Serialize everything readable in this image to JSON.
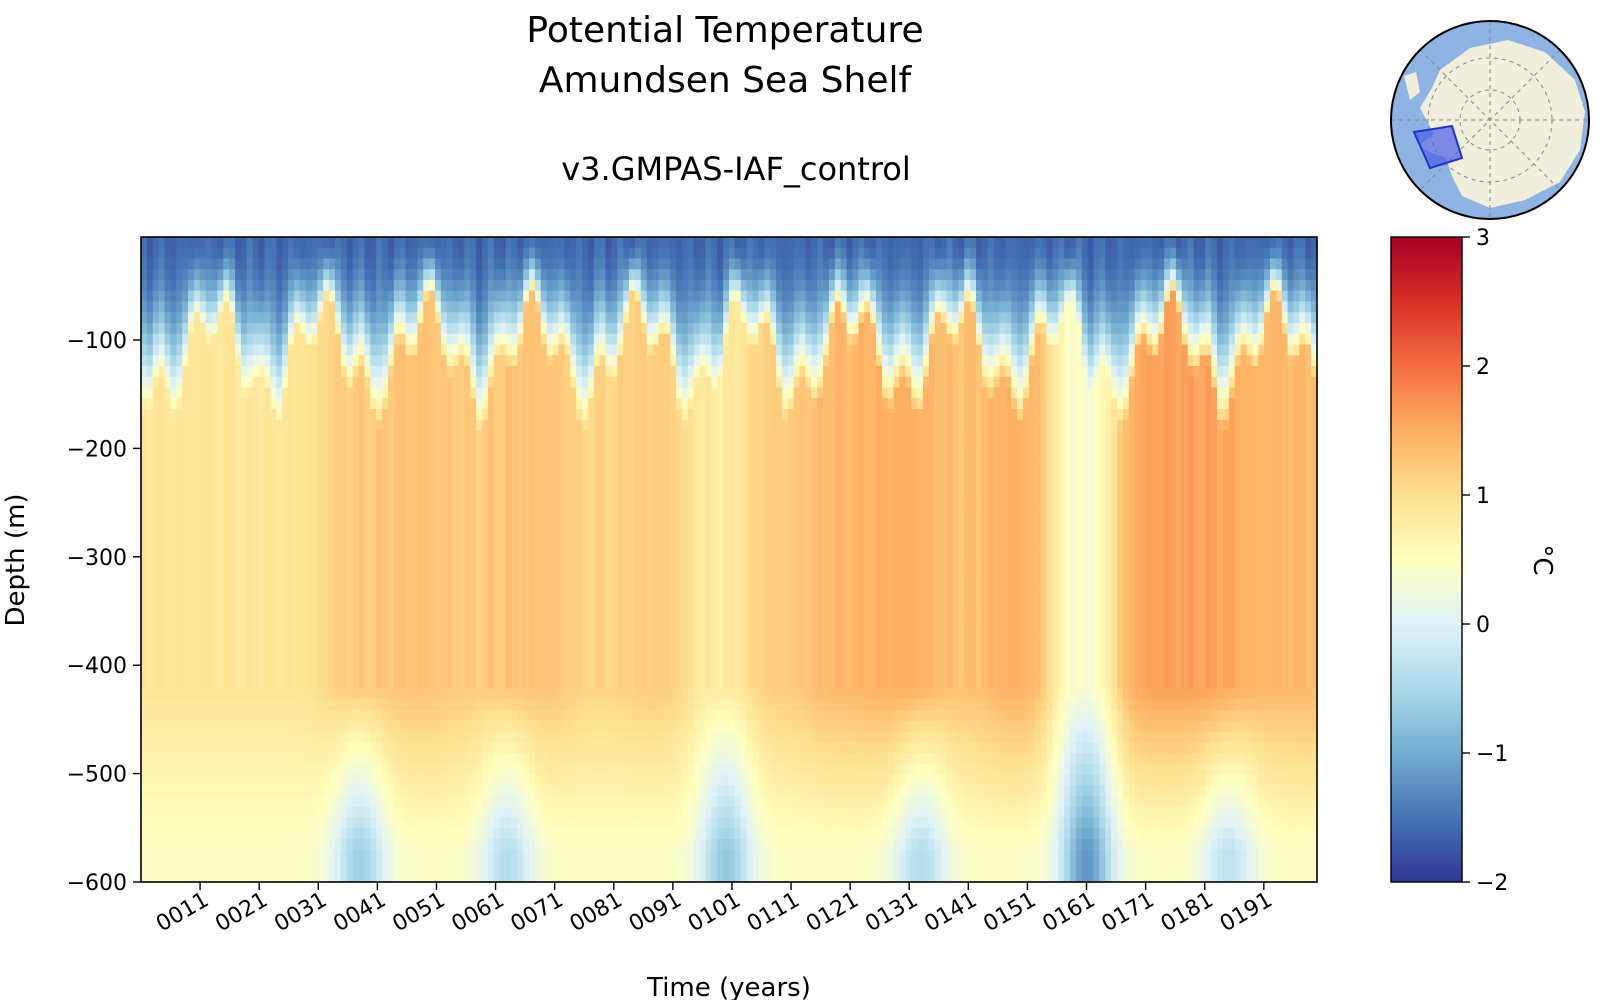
{
  "figure": {
    "title_line1": "Potential Temperature",
    "title_line2": "Amundsen Sea Shelf",
    "subtitle": "v3.GMPAS-IAF_control"
  },
  "chart_data": {
    "type": "heatmap",
    "xlabel": "Time (years)",
    "ylabel": "Depth (m)",
    "colorbar_label": "°C",
    "colormap": "RdYlBu_r",
    "xlim": [
      1,
      200
    ],
    "ylim": [
      -600,
      -5
    ],
    "x_tick_values": [
      11,
      21,
      31,
      41,
      51,
      61,
      71,
      81,
      91,
      101,
      111,
      121,
      131,
      141,
      151,
      161,
      171,
      181,
      191
    ],
    "x_tick_labels": [
      "0011",
      "0021",
      "0031",
      "0041",
      "0051",
      "0061",
      "0071",
      "0081",
      "0091",
      "0101",
      "0111",
      "0121",
      "0131",
      "0141",
      "0151",
      "0161",
      "0171",
      "0181",
      "0191"
    ],
    "y_ticks": [
      -100,
      -200,
      -300,
      -400,
      -500,
      -600
    ],
    "y_tick_labels": [
      "−100",
      "−200",
      "−300",
      "−400",
      "−500",
      "−600"
    ],
    "clim": [
      -2,
      3
    ],
    "colorbar_ticks": [
      3,
      2,
      1,
      0,
      -1,
      -2
    ],
    "colorbar_tick_labels": [
      "3",
      "2",
      "1",
      "0",
      "−1",
      "−2"
    ],
    "colors": {
      "stops": [
        "#313695",
        "#4575b4",
        "#74add1",
        "#abd9e9",
        "#e0f3f8",
        "#ffffbf",
        "#fee090",
        "#fdae61",
        "#f46d43",
        "#d73027",
        "#a50026"
      ],
      "inset_ocean": "#8fb3e3",
      "inset_land": "#f0eedd",
      "inset_region": "#4a5fe8"
    },
    "approx_profile": {
      "description_depths_m": [
        -5,
        -50,
        -100,
        -150,
        -200,
        -300,
        -400,
        -500,
        -600
      ],
      "surface_c": -1.6,
      "core_depth_m": -300,
      "warm_events_peak_c": [
        0.9,
        0.9,
        0.9,
        1.2,
        1.3,
        1.2,
        1.3,
        1.1,
        1.2,
        0.8,
        1.2,
        1.4,
        1.5,
        1.3,
        1.5,
        0.3,
        1.6,
        1.6,
        1.4
      ],
      "cold_bottom_events_years": [
        38,
        63,
        100,
        133,
        161,
        185
      ],
      "cold_bottom_events_c": [
        -0.6,
        -0.4,
        -0.7,
        -0.4,
        -1.2,
        -0.3
      ]
    }
  }
}
